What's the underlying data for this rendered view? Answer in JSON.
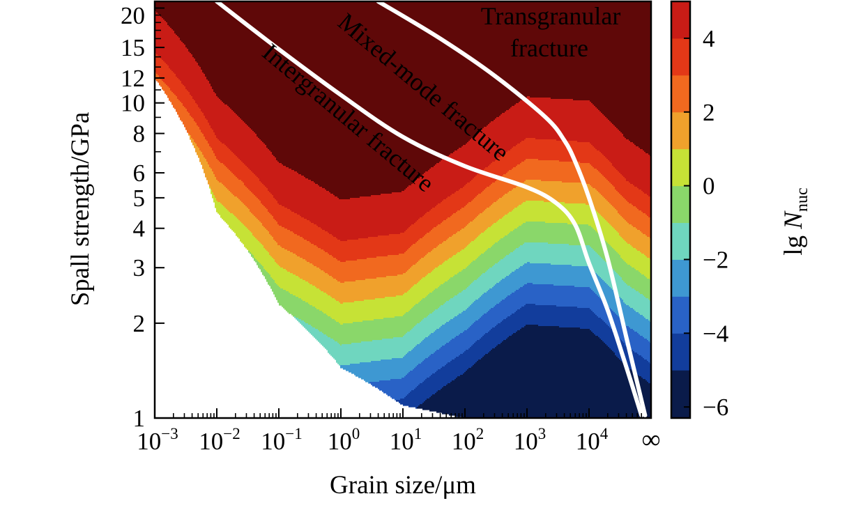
{
  "chart_data": {
    "type": "heatmap",
    "title": "",
    "xlabel": "Grain size/μm",
    "ylabel": "Spall strength/GPa",
    "x_scale": "log",
    "y_scale": "log",
    "xlim": [
      0.001,
      100000
    ],
    "ylim": [
      1,
      21
    ],
    "x_ticks": [
      {
        "value": 0.001,
        "base": "10",
        "exp": "−3"
      },
      {
        "value": 0.01,
        "base": "10",
        "exp": "−2"
      },
      {
        "value": 0.1,
        "base": "10",
        "exp": "−1"
      },
      {
        "value": 1,
        "base": "10",
        "exp": "0"
      },
      {
        "value": 10,
        "base": "10",
        "exp": "1"
      },
      {
        "value": 100,
        "base": "10",
        "exp": "2"
      },
      {
        "value": 1000,
        "base": "10",
        "exp": "3"
      },
      {
        "value": 10000,
        "base": "10",
        "exp": "4"
      }
    ],
    "x_infinity_label": "∞",
    "y_ticks": [
      {
        "value": 1,
        "label": "1"
      },
      {
        "value": 2,
        "label": "2"
      },
      {
        "value": 3,
        "label": "3"
      },
      {
        "value": 4,
        "label": "4"
      },
      {
        "value": 5,
        "label": "5"
      },
      {
        "value": 6,
        "label": "6"
      },
      {
        "value": 8,
        "label": "8"
      },
      {
        "value": 10,
        "label": "10"
      },
      {
        "value": 12,
        "label": "12"
      },
      {
        "value": 15,
        "label": "15"
      },
      {
        "value": 20,
        "label": "20"
      }
    ],
    "colorbar": {
      "label_prefix": "lg ",
      "label_var": "N",
      "label_sub": "nuc",
      "min": -6.3,
      "max": 5.0,
      "ticks": [
        {
          "value": 4,
          "label": "4"
        },
        {
          "value": 2,
          "label": "2"
        },
        {
          "value": 0,
          "label": "0"
        },
        {
          "value": -2,
          "label": "−2"
        },
        {
          "value": -4,
          "label": "−4"
        },
        {
          "value": -6,
          "label": "−6"
        }
      ]
    },
    "levels": [
      {
        "lo": -7,
        "hi": -5,
        "color": "#0a1b4a"
      },
      {
        "lo": -5,
        "hi": -4,
        "color": "#123d9c"
      },
      {
        "lo": -4,
        "hi": -3,
        "color": "#2962c6"
      },
      {
        "lo": -3,
        "hi": -2,
        "color": "#3e98d2"
      },
      {
        "lo": -2,
        "hi": -1,
        "color": "#6fd6bf"
      },
      {
        "lo": -1,
        "hi": 0,
        "color": "#8ad76a"
      },
      {
        "lo": 0,
        "hi": 1,
        "color": "#c6e236"
      },
      {
        "lo": 1,
        "hi": 2,
        "color": "#f0a12c"
      },
      {
        "lo": 2,
        "hi": 3,
        "color": "#f1691f"
      },
      {
        "lo": 3,
        "hi": 4,
        "color": "#e33817"
      },
      {
        "lo": 4,
        "hi": 6,
        "color": "#c91c16"
      },
      {
        "lo": 6,
        "hi": 9,
        "color": "#5f0808"
      }
    ],
    "boundaries": [
      {
        "name": "Intergranular/Mixed-mode boundary",
        "points": [
          [
            0.01,
            21
          ],
          [
            0.1,
            14.8
          ],
          [
            1,
            10.6
          ],
          [
            10,
            7.8
          ],
          [
            100,
            6.3
          ],
          [
            1000,
            5.4
          ],
          [
            3000,
            4.8
          ],
          [
            6000,
            4.1
          ],
          [
            10000,
            3.1
          ],
          [
            20000,
            2.2
          ],
          [
            40000,
            1.45
          ],
          [
            70000,
            1.02
          ]
        ]
      },
      {
        "name": "Mixed-mode/Transgranular boundary",
        "points": [
          [
            4,
            21
          ],
          [
            40,
            16
          ],
          [
            300,
            12.2
          ],
          [
            2000,
            9
          ],
          [
            4000,
            7.6
          ],
          [
            6000,
            6.5
          ],
          [
            10000,
            5
          ],
          [
            20000,
            3.2
          ],
          [
            40000,
            1.8
          ],
          [
            80000,
            1.02
          ]
        ]
      }
    ],
    "annotations": [
      {
        "name": "intergranular",
        "text": "Intergranular fracture"
      },
      {
        "name": "mixed",
        "text": "Mixed-mode fracture"
      },
      {
        "name": "trans-1",
        "text": "Transgranular"
      },
      {
        "name": "trans-2",
        "text": "fracture"
      }
    ]
  }
}
